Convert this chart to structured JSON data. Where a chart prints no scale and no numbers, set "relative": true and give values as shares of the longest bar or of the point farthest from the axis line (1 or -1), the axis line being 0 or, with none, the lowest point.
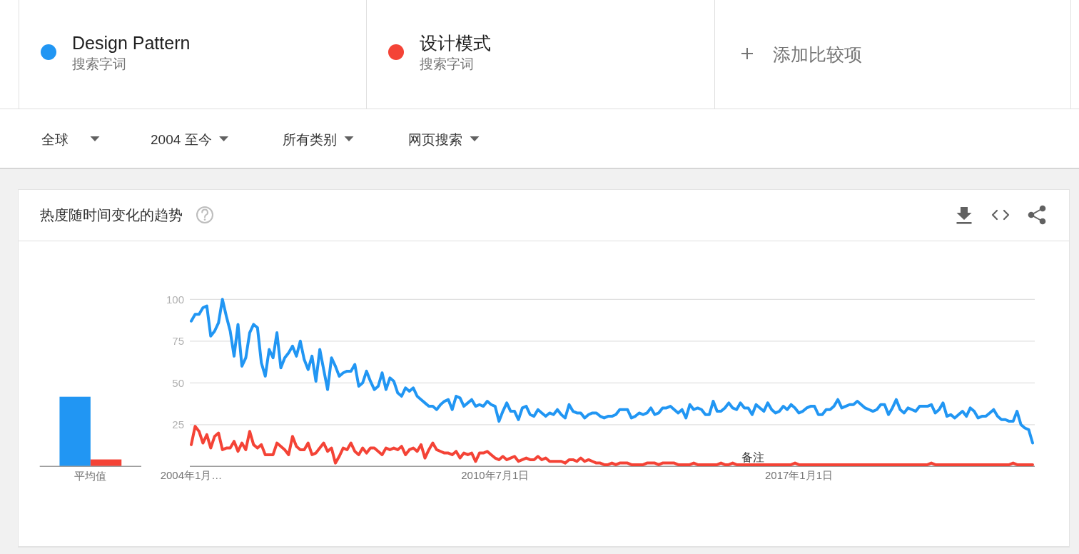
{
  "chart_data": [
    {
      "type": "line",
      "title": "热度随时间变化的趋势",
      "legend": "top",
      "grid": "y",
      "x": [
        "2004-01",
        "2004-02",
        "2004-03",
        "2004-04",
        "2004-05",
        "2004-06",
        "2004-07",
        "2004-08",
        "2004-09",
        "2004-10",
        "2004-11",
        "2004-12",
        "2005-01",
        "2005-02",
        "2005-03",
        "2005-04",
        "2005-05",
        "2005-06",
        "2005-07",
        "2005-08",
        "2005-09",
        "2005-10",
        "2005-11",
        "2005-12",
        "2006-01",
        "2006-02",
        "2006-03",
        "2006-04",
        "2006-05",
        "2006-06",
        "2006-07",
        "2006-08",
        "2006-09",
        "2006-10",
        "2006-11",
        "2006-12",
        "2007-01",
        "2007-02",
        "2007-03",
        "2007-04",
        "2007-05",
        "2007-06",
        "2007-07",
        "2007-08",
        "2007-09",
        "2007-10",
        "2007-11",
        "2007-12",
        "2008-01",
        "2008-02",
        "2008-03",
        "2008-04",
        "2008-05",
        "2008-06",
        "2008-07",
        "2008-08",
        "2008-09",
        "2008-10",
        "2008-11",
        "2008-12",
        "2009-01",
        "2009-02",
        "2009-03",
        "2009-04",
        "2009-05",
        "2009-06",
        "2009-07",
        "2009-08",
        "2009-09",
        "2009-10",
        "2009-11",
        "2009-12",
        "2010-01",
        "2010-02",
        "2010-03",
        "2010-04",
        "2010-05",
        "2010-06",
        "2010-07",
        "2010-08",
        "2010-09",
        "2010-10",
        "2010-11",
        "2010-12",
        "2011-01",
        "2011-02",
        "2011-03",
        "2011-04",
        "2011-05",
        "2011-06",
        "2011-07",
        "2011-08",
        "2011-09",
        "2011-10",
        "2011-11",
        "2011-12",
        "2012-01",
        "2012-02",
        "2012-03",
        "2012-04",
        "2012-05",
        "2012-06",
        "2012-07",
        "2012-08",
        "2012-09",
        "2012-10",
        "2012-11",
        "2012-12",
        "2013-01",
        "2013-02",
        "2013-03",
        "2013-04",
        "2013-05",
        "2013-06",
        "2013-07",
        "2013-08",
        "2013-09",
        "2013-10",
        "2013-11",
        "2013-12",
        "2014-01",
        "2014-02",
        "2014-03",
        "2014-04",
        "2014-05",
        "2014-06",
        "2014-07",
        "2014-08",
        "2014-09",
        "2014-10",
        "2014-11",
        "2014-12",
        "2015-01",
        "2015-02",
        "2015-03",
        "2015-04",
        "2015-05",
        "2015-06",
        "2015-07",
        "2015-08",
        "2015-09",
        "2015-10",
        "2015-11",
        "2015-12",
        "2016-01",
        "2016-02",
        "2016-03",
        "2016-04",
        "2016-05",
        "2016-06",
        "2016-07",
        "2016-08",
        "2016-09",
        "2016-10",
        "2016-11",
        "2016-12",
        "2017-01",
        "2017-02",
        "2017-03",
        "2017-04",
        "2017-05",
        "2017-06",
        "2017-07",
        "2017-08",
        "2017-09",
        "2017-10",
        "2017-11",
        "2017-12",
        "2018-01",
        "2018-02",
        "2018-03",
        "2018-04",
        "2018-05",
        "2018-06",
        "2018-07",
        "2018-08",
        "2018-09",
        "2018-10",
        "2018-11",
        "2018-12",
        "2019-01",
        "2019-02",
        "2019-03",
        "2019-04",
        "2019-05",
        "2019-06",
        "2019-07",
        "2019-08",
        "2019-09",
        "2019-10",
        "2019-11",
        "2019-12",
        "2020-01",
        "2020-02",
        "2020-03",
        "2020-04",
        "2020-05",
        "2020-06",
        "2020-07",
        "2020-08",
        "2020-09",
        "2020-10",
        "2020-11",
        "2020-12",
        "2021-01",
        "2021-02",
        "2021-03",
        "2021-04",
        "2021-05",
        "2021-06",
        "2021-07",
        "2021-08",
        "2021-09",
        "2021-10",
        "2021-11",
        "2021-12",
        "2022-01"
      ],
      "xlim": [
        "2004-01",
        "2022-01"
      ],
      "xticks": [
        {
          "value": "2004-01-01",
          "label": "2004年1月…"
        },
        {
          "value": "2010-07-01",
          "label": "2010年7月1日"
        },
        {
          "value": "2017-01-01",
          "label": "2017年1月1日"
        }
      ],
      "ylim": [
        0,
        100
      ],
      "yticks": [
        {
          "value": 0,
          "label": null
        },
        25,
        50,
        75,
        100
      ],
      "series": [
        {
          "name": "Design Pattern",
          "color": "#2196f3",
          "values": [
            87,
            91,
            91,
            95,
            96,
            78,
            81,
            86,
            100,
            90,
            81,
            66,
            85,
            60,
            65,
            80,
            85,
            83,
            62,
            54,
            70,
            65,
            80,
            59,
            65,
            68,
            72,
            66,
            75,
            64,
            58,
            66,
            51,
            70,
            58,
            46,
            65,
            60,
            54,
            56,
            57,
            57,
            61,
            48,
            50,
            57,
            51,
            46,
            48,
            56,
            46,
            53,
            51,
            44,
            42,
            47,
            45,
            47,
            42,
            40,
            38,
            36,
            36,
            34,
            37,
            39,
            40,
            34,
            42,
            41,
            36,
            38,
            40,
            36,
            37,
            36,
            39,
            37,
            36,
            27,
            33,
            38,
            33,
            33,
            28,
            35,
            36,
            31,
            30,
            34,
            32,
            30,
            32,
            31,
            34,
            31,
            29,
            37,
            33,
            32,
            32,
            29,
            31,
            32,
            32,
            30,
            29,
            30,
            30,
            31,
            34,
            34,
            34,
            29,
            30,
            32,
            31,
            32,
            35,
            31,
            32,
            35,
            35,
            36,
            34,
            32,
            34,
            29,
            37,
            34,
            35,
            34,
            31,
            31,
            39,
            33,
            33,
            35,
            38,
            35,
            34,
            38,
            35,
            35,
            31,
            37,
            35,
            33,
            38,
            34,
            32,
            33,
            36,
            34,
            37,
            35,
            32,
            33,
            35,
            36,
            36,
            31,
            31,
            34,
            34,
            36,
            40,
            35,
            36,
            37,
            37,
            39,
            37,
            35,
            34,
            33,
            34,
            37,
            37,
            31,
            35,
            40,
            34,
            32,
            35,
            34,
            33,
            36,
            36,
            36,
            37,
            32,
            34,
            38,
            30,
            31,
            29,
            31,
            33,
            30,
            35,
            33,
            29,
            30,
            30,
            32,
            34,
            30,
            28,
            28,
            27,
            27,
            33,
            25,
            23,
            22,
            14
          ]
        },
        {
          "name": "设计模式",
          "color": "#f44336",
          "values": [
            13,
            24,
            21,
            14,
            19,
            11,
            18,
            20,
            10,
            11,
            11,
            15,
            9,
            14,
            10,
            21,
            13,
            11,
            13,
            7,
            7,
            7,
            14,
            12,
            10,
            7,
            18,
            12,
            10,
            10,
            14,
            7,
            8,
            11,
            14,
            9,
            11,
            2,
            6,
            11,
            10,
            14,
            9,
            7,
            11,
            8,
            11,
            11,
            9,
            7,
            11,
            10,
            11,
            10,
            12,
            7,
            10,
            11,
            9,
            13,
            5,
            10,
            14,
            10,
            9,
            8,
            8,
            7,
            9,
            5,
            8,
            7,
            8,
            3,
            8,
            8,
            9,
            7,
            5,
            4,
            6,
            4,
            5,
            6,
            3,
            4,
            5,
            4,
            4,
            6,
            4,
            5,
            3,
            3,
            3,
            3,
            2,
            4,
            4,
            3,
            5,
            3,
            4,
            3,
            2,
            2,
            1,
            1,
            2,
            1,
            2,
            2,
            2,
            1,
            1,
            1,
            1,
            2,
            2,
            2,
            1,
            2,
            2,
            2,
            2,
            1,
            1,
            1,
            1,
            2,
            1,
            1,
            1,
            1,
            1,
            1,
            2,
            1,
            1,
            2,
            1,
            1,
            1,
            1,
            1,
            1,
            1,
            1,
            1,
            1,
            1,
            1,
            1,
            1,
            1,
            2,
            1,
            1,
            1,
            1,
            1,
            1,
            1,
            1,
            1,
            1,
            1,
            1,
            1,
            1,
            1,
            1,
            1,
            1,
            1,
            1,
            1,
            1,
            1,
            1,
            1,
            1,
            1,
            1,
            1,
            1,
            1,
            1,
            1,
            1,
            2,
            1,
            1,
            1,
            1,
            1,
            1,
            1,
            1,
            1,
            1,
            1,
            1,
            1,
            1,
            1,
            1,
            1,
            1,
            1,
            1,
            2,
            1,
            1,
            1,
            1,
            1
          ]
        }
      ],
      "annotations": [
        "搜索字词",
        "搜索字词",
        "添加比较项",
        "全球",
        "2004 至今",
        "所有类别",
        "网页搜索",
        "备注"
      ]
    },
    {
      "type": "bar",
      "relative": true,
      "categories": [
        "平均值"
      ],
      "series": [
        {
          "color": "#2196f3",
          "values": [
            1
          ]
        },
        {
          "color": "#f44336",
          "values": [
            0.1
          ]
        }
      ]
    }
  ]
}
